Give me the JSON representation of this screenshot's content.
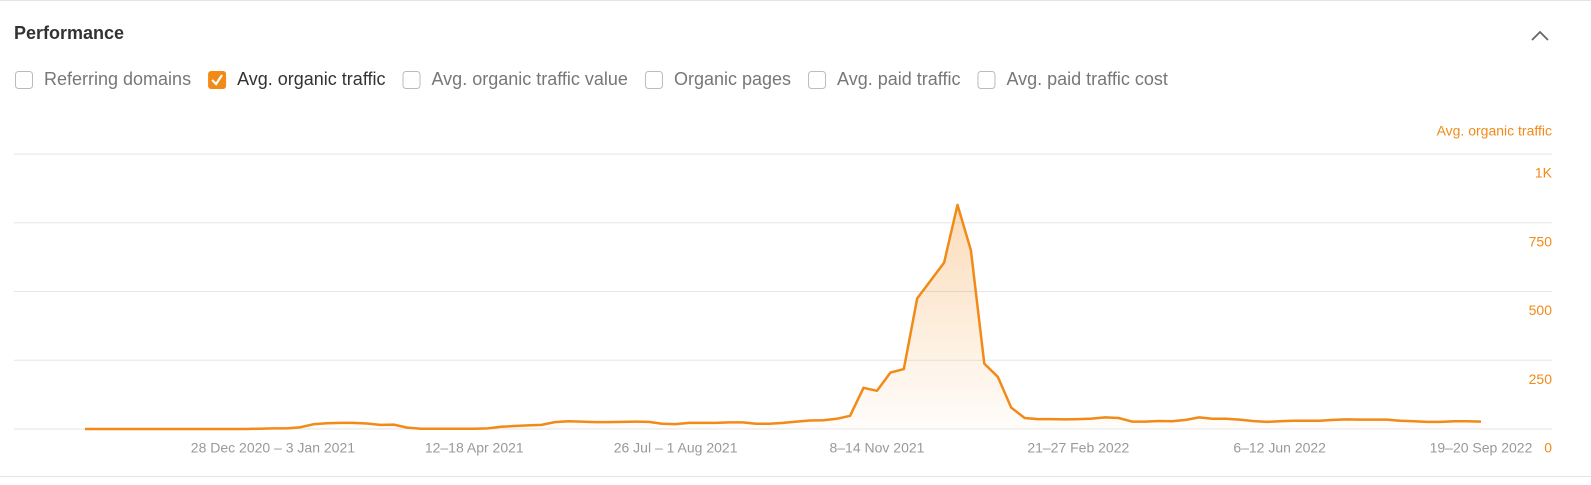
{
  "panel": {
    "title": "Performance",
    "options": [
      {
        "label": "Referring domains",
        "checked": false
      },
      {
        "label": "Avg. organic traffic",
        "checked": true
      },
      {
        "label": "Avg. organic traffic value",
        "checked": false
      },
      {
        "label": "Organic pages",
        "checked": false
      },
      {
        "label": "Avg. paid traffic",
        "checked": false
      },
      {
        "label": "Avg. paid traffic cost",
        "checked": false
      }
    ]
  },
  "chart_data": {
    "type": "area",
    "ylabel": "Avg. organic traffic",
    "grid": true,
    "ylim": [
      0,
      1000
    ],
    "yticks": [
      0,
      250,
      500,
      750,
      {
        "value": 1000,
        "label": "1K"
      }
    ],
    "categories": [
      null,
      null,
      null,
      null,
      null,
      null,
      null,
      null,
      null,
      null,
      null,
      null,
      null,
      null,
      "28 Dec 2020 – 3 Jan 2021",
      null,
      null,
      null,
      null,
      null,
      null,
      null,
      null,
      null,
      null,
      null,
      null,
      null,
      null,
      "12–18 Apr 2021",
      null,
      null,
      null,
      null,
      null,
      null,
      null,
      null,
      null,
      null,
      null,
      null,
      null,
      null,
      "26 Jul – 1 Aug 2021",
      null,
      null,
      null,
      null,
      null,
      null,
      null,
      null,
      null,
      null,
      null,
      null,
      null,
      null,
      "8–14 Nov 2021",
      null,
      null,
      null,
      null,
      null,
      null,
      null,
      null,
      null,
      null,
      null,
      null,
      null,
      null,
      "21–27 Feb 2022",
      null,
      null,
      null,
      null,
      null,
      null,
      null,
      null,
      null,
      null,
      null,
      null,
      null,
      null,
      "6–12 Jun 2022",
      null,
      null,
      null,
      null,
      null,
      null,
      null,
      null,
      null,
      null,
      null,
      null,
      null,
      null,
      "19–20 Sep 2022"
    ],
    "series": [
      {
        "name": "Avg. organic traffic",
        "color": "#f28a18",
        "values": [
          0,
          0,
          0,
          0,
          0,
          0,
          0,
          0,
          0,
          0,
          0,
          0,
          0,
          1,
          2,
          2,
          6,
          17,
          21,
          22,
          22,
          20,
          15,
          16,
          5,
          1,
          1,
          1,
          1,
          1,
          2,
          8,
          11,
          13,
          15,
          25,
          28,
          27,
          25,
          25,
          26,
          27,
          26,
          19,
          18,
          22,
          22,
          22,
          24,
          24,
          19,
          19,
          22,
          27,
          31,
          32,
          37,
          48,
          150,
          139,
          205,
          218,
          475,
          540,
          605,
          815,
          650,
          238,
          190,
          78,
          40,
          36,
          36,
          35,
          36,
          38,
          42,
          40,
          27,
          27,
          29,
          28,
          33,
          42,
          37,
          37,
          34,
          29,
          26,
          28,
          30,
          30,
          30,
          33,
          35,
          34,
          34,
          34,
          30,
          28,
          26,
          26,
          28,
          28,
          27
        ]
      }
    ]
  }
}
